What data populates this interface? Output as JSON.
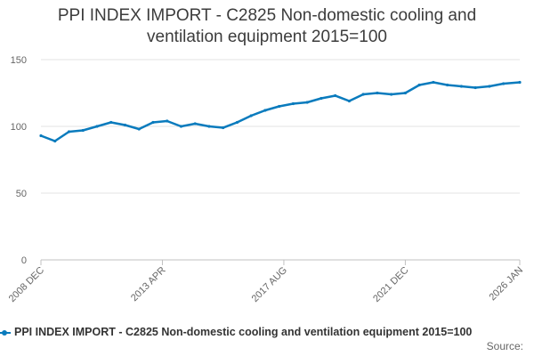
{
  "chart_data": {
    "type": "line",
    "title": "PPI INDEX IMPORT - C2825 Non-domestic cooling and\nventilation equipment 2015=100",
    "xlabel": "",
    "ylabel": "",
    "ylim": [
      0,
      150
    ],
    "yticks": [
      0,
      50,
      100,
      150
    ],
    "xlim": [
      "2008-12",
      "2026-01"
    ],
    "xticks": [
      "2008 DEC",
      "2013 APR",
      "2017 AUG",
      "2021 DEC",
      "2026 JAN"
    ],
    "grid": true,
    "legend_position": "bottom",
    "color": "#0a7bbd",
    "series": [
      {
        "name": "PPI INDEX IMPORT - C2825 Non-domestic cooling and ventilation equipment 2015=100",
        "x": [
          "2008-12",
          "2009-06",
          "2009-12",
          "2010-06",
          "2010-12",
          "2011-06",
          "2011-12",
          "2012-06",
          "2012-12",
          "2013-06",
          "2013-12",
          "2014-06",
          "2014-12",
          "2015-06",
          "2015-12",
          "2016-06",
          "2016-12",
          "2017-06",
          "2017-12",
          "2018-06",
          "2018-12",
          "2019-06",
          "2019-12",
          "2020-06",
          "2020-12",
          "2021-06",
          "2021-12",
          "2022-06",
          "2022-12",
          "2023-06",
          "2023-12",
          "2024-06",
          "2024-12",
          "2025-06",
          "2026-01"
        ],
        "values": [
          93,
          89,
          96,
          97,
          100,
          103,
          101,
          98,
          103,
          104,
          100,
          102,
          100,
          99,
          103,
          108,
          112,
          115,
          117,
          118,
          121,
          123,
          119,
          124,
          125,
          124,
          125,
          131,
          133,
          131,
          130,
          129,
          130,
          132,
          133
        ]
      }
    ]
  },
  "source_label": "Source:"
}
